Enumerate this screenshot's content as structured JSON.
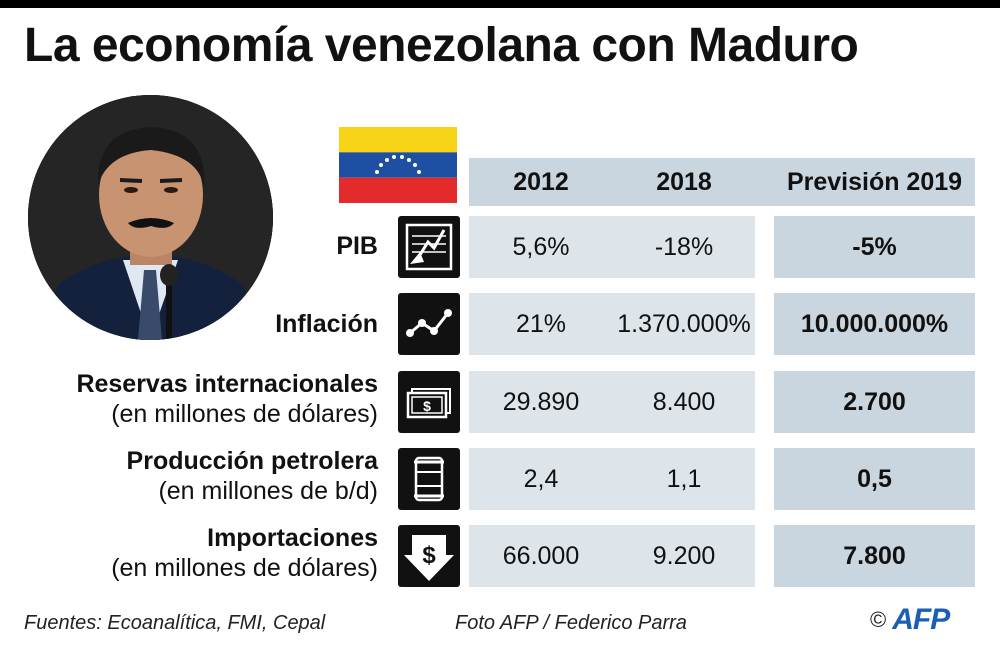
{
  "title": "La economía venezolana con Maduro",
  "columns": [
    "2012",
    "2018",
    "Previsión 2019"
  ],
  "rows": [
    {
      "label": "PIB",
      "sublabel": "",
      "icon": "chart-down-icon",
      "values": [
        "5,6%",
        "-18%",
        "-5%"
      ]
    },
    {
      "label": "Inflación",
      "sublabel": "",
      "icon": "trend-up-icon",
      "values": [
        "21%",
        "1.370.000%",
        "10.000.000%"
      ]
    },
    {
      "label": "Reservas internacionales",
      "sublabel": "(en millones de dólares)",
      "icon": "banknotes-icon",
      "values": [
        "29.890",
        "8.400",
        "2.700"
      ]
    },
    {
      "label": "Producción petrolera",
      "sublabel": "(en millones de b/d)",
      "icon": "oil-barrel-icon",
      "values": [
        "2,4",
        "1,1",
        "0,5"
      ]
    },
    {
      "label": "Importaciones",
      "sublabel": "(en millones de dólares)",
      "icon": "dollar-down-arrow-icon",
      "values": [
        "66.000",
        "9.200",
        "7.800"
      ]
    }
  ],
  "footer": {
    "sources": "Fuentes: Ecoanalítica, FMI, Cepal",
    "photo": "Foto AFP /  Federico Parra",
    "copyright": "©",
    "logo": "AFP"
  },
  "colors": {
    "flag_yellow": "#f7d417",
    "flag_blue": "#1f4fa3",
    "flag_red": "#e32b2b",
    "header_band": "#c9d6df",
    "row_band": "#dde5eb",
    "afp_blue": "#1a5fb4"
  }
}
